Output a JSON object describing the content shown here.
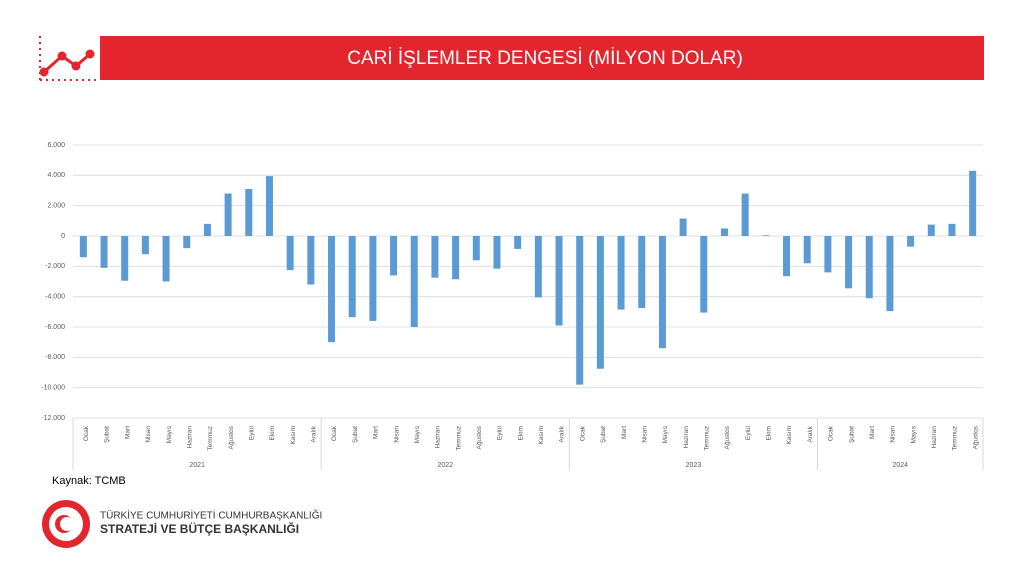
{
  "chart_data": {
    "type": "bar",
    "title": "CARİ İŞLEMLER DENGESİ (MİLYON DOLAR)",
    "source": "Kaynak: TCMB",
    "categories": [
      "Ocak",
      "Şubat",
      "Mart",
      "Nisan",
      "Mayıs",
      "Haziran",
      "Temmuz",
      "Ağustos",
      "Eylül",
      "Ekim",
      "Kasım",
      "Aralık",
      "Ocak",
      "Şubat",
      "Mart",
      "Nisan",
      "Mayıs",
      "Haziran",
      "Temmuz",
      "Ağustos",
      "Eylül",
      "Ekim",
      "Kasım",
      "Aralık",
      "Ocak",
      "Şubat",
      "Mart",
      "Nisan",
      "Mayıs",
      "Haziran",
      "Temmuz",
      "Ağustos",
      "Eylül",
      "Ekim",
      "Kasım",
      "Aralık",
      "Ocak",
      "Şubat",
      "Mart",
      "Nisan",
      "Mayıs",
      "Haziran",
      "Temmuz",
      "Ağustos"
    ],
    "category_groups": [
      "2021",
      "2021",
      "2021",
      "2021",
      "2021",
      "2021",
      "2021",
      "2021",
      "2021",
      "2021",
      "2021",
      "2021",
      "2022",
      "2022",
      "2022",
      "2022",
      "2022",
      "2022",
      "2022",
      "2022",
      "2022",
      "2022",
      "2022",
      "2022",
      "2023",
      "2023",
      "2023",
      "2023",
      "2023",
      "2023",
      "2023",
      "2023",
      "2023",
      "2023",
      "2023",
      "2023",
      "2024",
      "2024",
      "2024",
      "2024",
      "2024",
      "2024",
      "2024",
      "2024"
    ],
    "values": [
      -1400,
      -2100,
      -2950,
      -1200,
      -3000,
      -800,
      800,
      2800,
      3100,
      3950,
      -2250,
      -3200,
      -7000,
      -5350,
      -5600,
      -2600,
      -6000,
      -2750,
      -2850,
      -1600,
      -2150,
      -850,
      -4050,
      -5900,
      -9800,
      -8750,
      -4850,
      -4750,
      -7400,
      1150,
      -5050,
      500,
      2800,
      50,
      -2650,
      -1800,
      -2400,
      -3450,
      -4100,
      -4950,
      -700,
      750,
      800,
      4300
    ],
    "color": "#5b9bd5",
    "ylim": [
      -12000,
      6000
    ],
    "yticks": [
      {
        "value": -12000,
        "label": "-12.000"
      },
      {
        "value": -10000,
        "label": "-10.000"
      },
      {
        "value": -8000,
        "label": "-8.000"
      },
      {
        "value": -6000,
        "label": "-6.000"
      },
      {
        "value": -4000,
        "label": "-4.000"
      },
      {
        "value": -2000,
        "label": "-2.000"
      },
      0,
      {
        "value": 2000,
        "label": "2.000"
      },
      {
        "value": 4000,
        "label": "4.000"
      },
      {
        "value": 6000,
        "label": "6.000"
      }
    ],
    "grid": true
  },
  "footer": {
    "org_line1": "TÜRKİYE CUMHURİYETİ CUMHURBAŞKANLIĞI",
    "org_line2": "STRATEJİ VE BÜTÇE BAŞKANLIĞI"
  }
}
